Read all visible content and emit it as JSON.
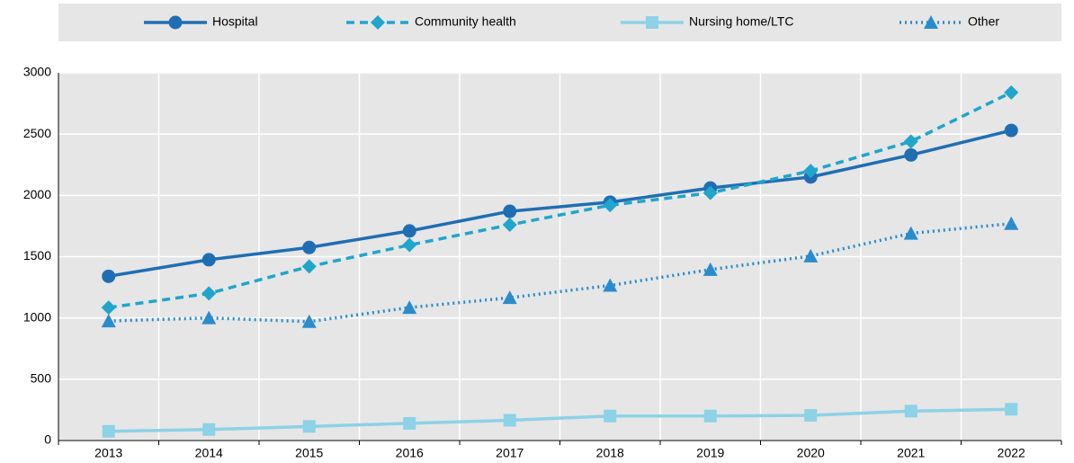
{
  "chart_data": {
    "type": "line",
    "categories": [
      "2013",
      "2014",
      "2015",
      "2016",
      "2017",
      "2018",
      "2019",
      "2020",
      "2021",
      "2022"
    ],
    "series": [
      {
        "name": "Hospital",
        "color": "#1f6eb3",
        "line_style": "solid",
        "marker": "circle",
        "values": [
          1340,
          1475,
          1575,
          1710,
          1870,
          1945,
          2060,
          2150,
          2330,
          2530
        ]
      },
      {
        "name": "Community health",
        "color": "#20a5cb",
        "line_style": "dashed",
        "marker": "diamond",
        "values": [
          1085,
          1200,
          1420,
          1595,
          1760,
          1920,
          2020,
          2200,
          2440,
          2840
        ]
      },
      {
        "name": "Nursing home/LTC",
        "color": "#8dd2e6",
        "line_style": "solid",
        "marker": "square",
        "values": [
          75,
          90,
          115,
          140,
          165,
          200,
          200,
          205,
          240,
          255
        ]
      },
      {
        "name": "Other",
        "color": "#2a8ccc",
        "line_style": "dotted",
        "marker": "triangle",
        "values": [
          975,
          1000,
          970,
          1085,
          1165,
          1265,
          1395,
          1505,
          1690,
          1770
        ]
      }
    ],
    "ylim": [
      0,
      3000
    ],
    "yticks": [
      0,
      500,
      1000,
      1500,
      2000,
      2500,
      3000
    ],
    "grid": true,
    "legend": "top"
  }
}
